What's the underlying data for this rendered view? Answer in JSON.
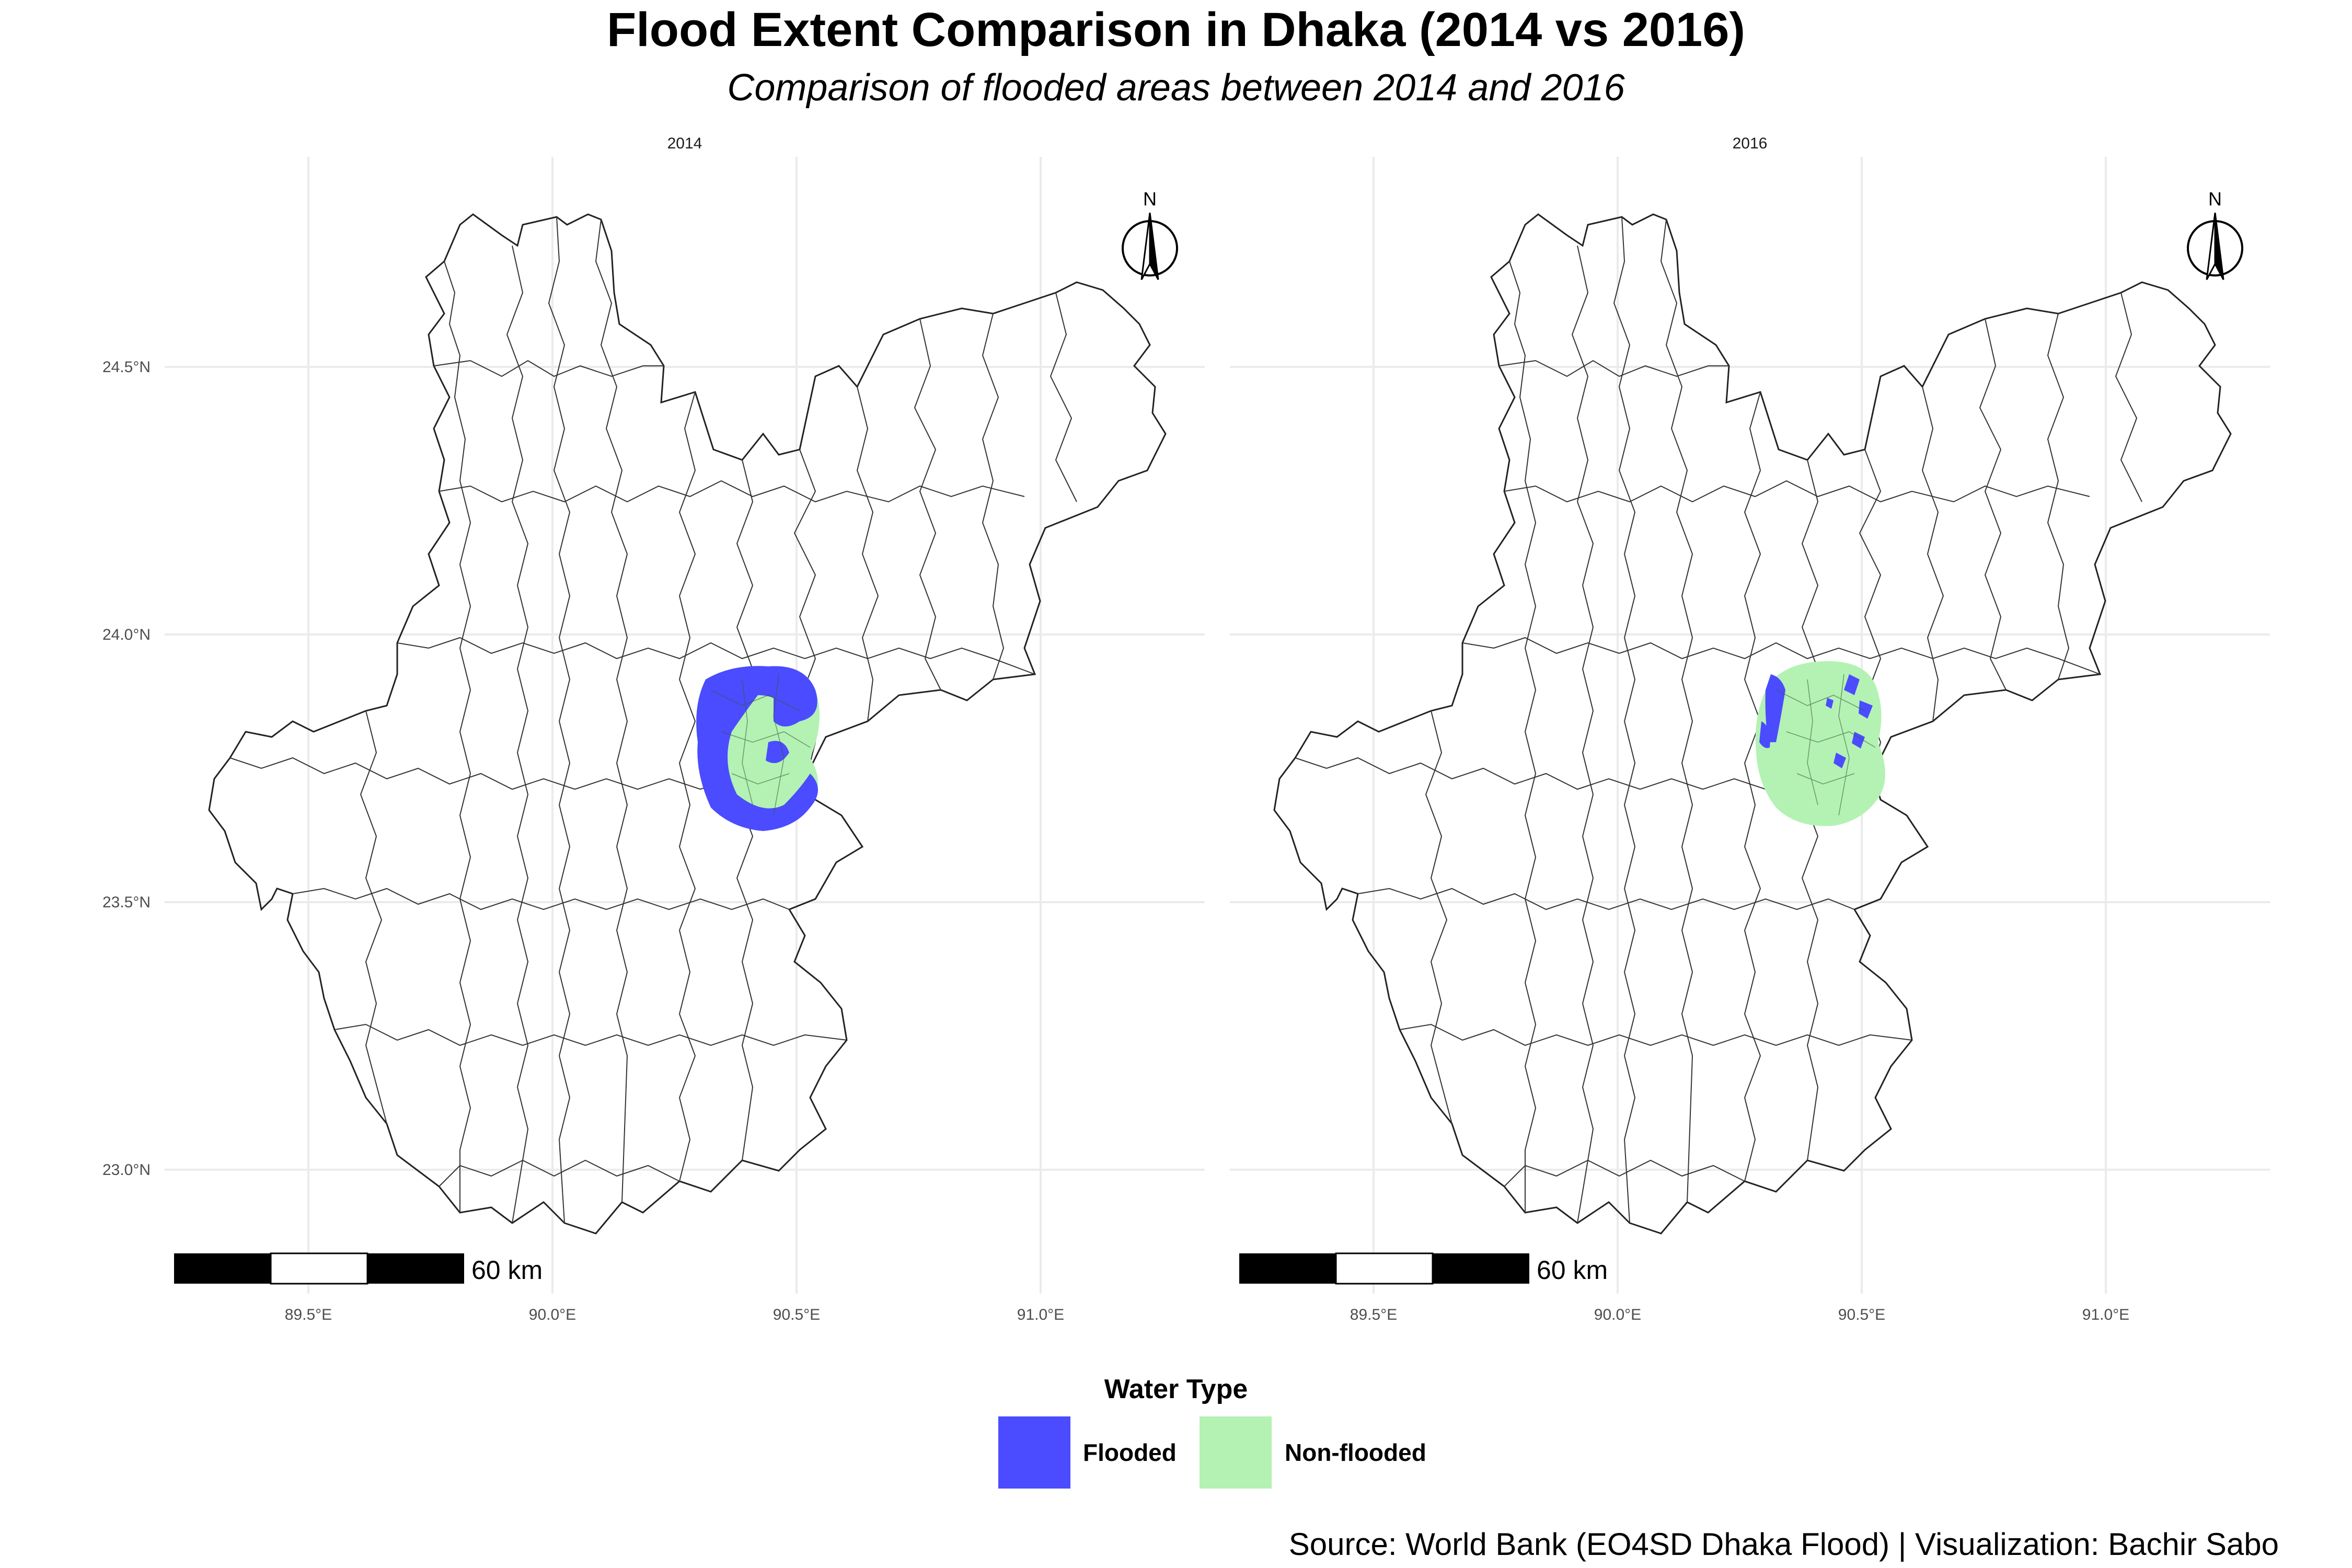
{
  "title": "Flood Extent Comparison in Dhaka (2014 vs 2016)",
  "subtitle": "Comparison of flooded areas between 2014 and 2016",
  "caption": "Source: World Bank (EO4SD Dhaka Flood) | Visualization: Bachir Sabo",
  "legend": {
    "title": "Water Type",
    "items": [
      {
        "label": "Flooded",
        "color": "#4b4bff"
      },
      {
        "label": "Non-flooded",
        "color": "#b3f2b3"
      }
    ]
  },
  "map_data": {
    "panels": [
      {
        "label": "2014",
        "flooded_share": "mostly flooded"
      },
      {
        "label": "2016",
        "flooded_share": "mostly non-flooded"
      }
    ],
    "x_ticks": [
      "89.5°E",
      "90.0°E",
      "90.5°E",
      "91.0°E"
    ],
    "y_ticks": [
      "24.5°N",
      "24.0°N",
      "23.5°N",
      "23.0°N"
    ],
    "x_range": [
      89.2,
      91.45
    ],
    "y_range": [
      22.8,
      24.8
    ],
    "scale_bar": {
      "label": "60 km"
    },
    "north_arrow": {
      "label": "N"
    },
    "grid": true,
    "legend_position": "bottom"
  }
}
